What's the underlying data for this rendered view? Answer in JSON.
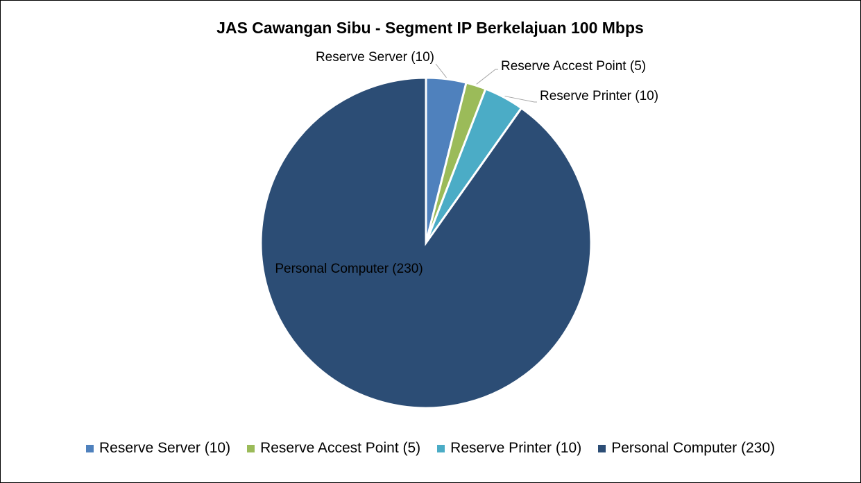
{
  "chart_data": {
    "type": "pie",
    "title": "JAS Cawangan Sibu - Segment IP Berkelajuan 100 Mbps",
    "categories": [
      "Reserve Server (10)",
      "Reserve Accest Point (5)",
      "Reserve Printer (10)",
      "Personal Computer (230)"
    ],
    "values": [
      10,
      5,
      10,
      230
    ],
    "colors": [
      "#4f81bd",
      "#9bbb59",
      "#4bacc6",
      "#2c4d75"
    ],
    "legend": "bottom"
  }
}
